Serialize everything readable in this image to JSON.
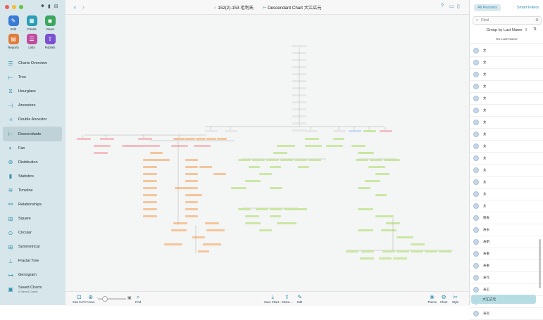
{
  "window": {
    "breadcrumb": "152(2)-153 毛利氏",
    "chart_title": "Descendant Chart 大江広元"
  },
  "toolbar_tools": [
    {
      "label": "Edit",
      "icon": "pencil-icon",
      "color": "#3a7bd5",
      "glyph": "✎"
    },
    {
      "label": "Charts",
      "icon": "charts-icon",
      "color": "#2a9db5",
      "glyph": "▦"
    },
    {
      "label": "Views",
      "icon": "eye-icon",
      "color": "#3aa660",
      "glyph": "◉"
    },
    {
      "label": "Reports",
      "icon": "reports-icon",
      "color": "#e07b39",
      "glyph": "▤"
    },
    {
      "label": "Lists",
      "icon": "lists-icon",
      "color": "#c04ca0",
      "glyph": "☰"
    },
    {
      "label": "Publish",
      "icon": "publish-icon",
      "color": "#7a4fd0",
      "glyph": "⇪"
    }
  ],
  "sidebar": {
    "items": [
      {
        "label": "Charts Overview",
        "icon": "charts-overview-icon",
        "glyph": "☰"
      },
      {
        "label": "Tree",
        "icon": "tree-icon",
        "glyph": "⊢"
      },
      {
        "label": "Hourglass",
        "icon": "hourglass-icon",
        "glyph": "⧖"
      },
      {
        "label": "Ancestors",
        "icon": "ancestors-icon",
        "glyph": "⊣"
      },
      {
        "label": "Double Ancestor",
        "icon": "double-ancestor-icon",
        "glyph": "⫣"
      },
      {
        "label": "Descendants",
        "icon": "descendants-icon",
        "glyph": "⊢",
        "active": true
      },
      {
        "label": "Fan",
        "icon": "fan-icon",
        "glyph": "◐"
      },
      {
        "label": "Distribution",
        "icon": "distribution-icon",
        "glyph": "⊛"
      },
      {
        "label": "Statistics",
        "icon": "statistics-icon",
        "glyph": "▮"
      },
      {
        "label": "Timeline",
        "icon": "timeline-icon",
        "glyph": "≋"
      },
      {
        "label": "Relationships",
        "icon": "relationships-icon",
        "glyph": "⚯"
      },
      {
        "label": "Square",
        "icon": "square-icon",
        "glyph": "⊞"
      },
      {
        "label": "Circular",
        "icon": "circular-icon",
        "glyph": "⊙"
      },
      {
        "label": "Symmetrical",
        "icon": "symmetrical-icon",
        "glyph": "⊞"
      },
      {
        "label": "Fractal Tree",
        "icon": "fractal-tree-icon",
        "glyph": "⊥"
      },
      {
        "label": "Genogram",
        "icon": "genogram-icon",
        "glyph": "⊶"
      },
      {
        "label": "Saved Charts",
        "sub": "0 Saved Charts",
        "icon": "saved-charts-icon",
        "glyph": "▣"
      }
    ]
  },
  "bottom_tools_left": [
    {
      "label": "Size to Fit",
      "icon": "size-to-fit-icon",
      "glyph": "⊡"
    },
    {
      "label": "Focus",
      "icon": "focus-icon",
      "glyph": "⊕"
    },
    {
      "label": "Find",
      "icon": "find-icon",
      "glyph": "⌕"
    }
  ],
  "bottom_tools_right": [
    {
      "label": "Save Chart...",
      "icon": "save-chart-icon",
      "glyph": "⤓"
    },
    {
      "label": "Share...",
      "icon": "share-icon",
      "glyph": "⇪"
    },
    {
      "label": "Edit",
      "icon": "edit-icon",
      "glyph": "✎"
    },
    {
      "label": "Theme",
      "icon": "theme-icon",
      "glyph": "❀"
    },
    {
      "label": "Chart",
      "icon": "chart-settings-icon",
      "glyph": "⚙"
    },
    {
      "label": "Style",
      "icon": "style-icon",
      "glyph": "✂"
    }
  ],
  "right_panel": {
    "tab_all": "All Persons",
    "tab_smart": "Smart Filters",
    "find_placeholder": "Find",
    "group_by": "Group by Last Name",
    "list_header": "No Last Name",
    "persons": [
      "女",
      "女",
      "女",
      "女",
      "女",
      "女",
      "女",
      "女",
      "女",
      "女",
      "女",
      "女",
      "女",
      "女",
      "徳寿",
      "寿永",
      "寿明",
      "寿重",
      "寿重",
      "寿元",
      "寿広",
      "寿広",
      "寿房"
    ],
    "selected": "大江広元"
  },
  "colors": {
    "pink": "#f3b9bf",
    "orange": "#f5c08f",
    "green": "#c6e59a",
    "lightblue": "#c7d9ef",
    "gray": "#e6e6e6",
    "line": "#9a9a9a"
  }
}
